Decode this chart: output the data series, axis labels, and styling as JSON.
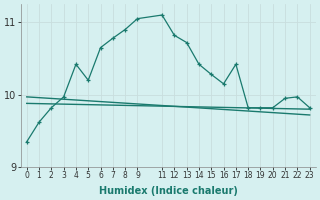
{
  "xlabel": "Humidex (Indice chaleur)",
  "bg_color": "#d6f0f0",
  "grid_color": "#c8dede",
  "line_color": "#1a7a6e",
  "x_main": [
    0,
    1,
    2,
    3,
    4,
    5,
    6,
    7,
    8,
    9,
    11,
    12,
    13,
    14,
    15,
    16,
    17,
    18,
    19,
    20,
    21,
    22,
    23
  ],
  "y_main": [
    9.35,
    9.62,
    9.82,
    9.97,
    10.42,
    10.2,
    10.65,
    10.78,
    10.9,
    11.05,
    11.1,
    10.82,
    10.72,
    10.42,
    10.28,
    10.15,
    10.42,
    9.82,
    9.82,
    9.82,
    9.95,
    9.97,
    9.82
  ],
  "y_reg1_start": 9.97,
  "y_reg1_end": 9.72,
  "y_reg2_start": 9.88,
  "y_reg2_end": 9.8,
  "ylim": [
    9.0,
    11.25
  ],
  "xlim": [
    -0.5,
    23.5
  ],
  "yticks": [
    9,
    10,
    11
  ],
  "xticks": [
    0,
    1,
    2,
    3,
    4,
    5,
    6,
    7,
    8,
    9,
    11,
    12,
    13,
    14,
    15,
    16,
    17,
    18,
    19,
    20,
    21,
    22,
    23
  ]
}
